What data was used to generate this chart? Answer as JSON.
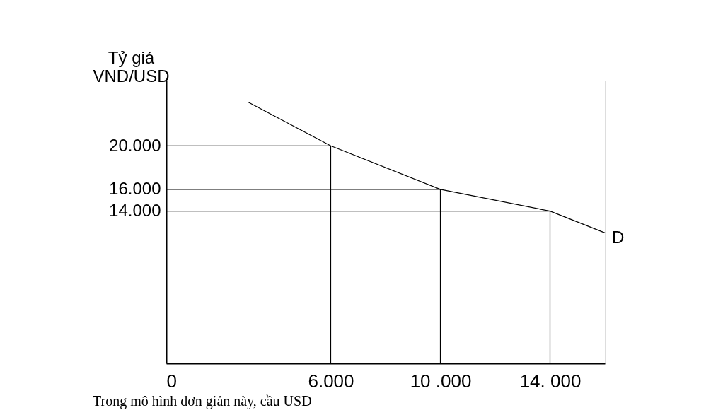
{
  "chart_data": {
    "type": "line",
    "ylabel": "Tỷ giá VND/USD",
    "xlim": [
      0,
      16000
    ],
    "ylim": [
      0,
      26000
    ],
    "xticks": [
      0,
      {
        "value": 6000,
        "label": "6.000"
      },
      {
        "value": 10000,
        "label": "10 .000"
      },
      {
        "value": 14000,
        "label": "14. 000"
      }
    ],
    "yticks": [
      {
        "value": 14000,
        "label": "14.000"
      },
      {
        "value": 16000,
        "label": "16.000"
      },
      {
        "value": 20000,
        "label": "20.000"
      }
    ],
    "series": [
      {
        "name": "D",
        "color": "#000000",
        "x": [
          3000,
          6000,
          10000,
          14000,
          16000
        ],
        "values": [
          24000,
          20000,
          16000,
          14000,
          12000
        ]
      },
      {
        "color": "#000000",
        "x": [
          0,
          6000,
          6000
        ],
        "values": [
          20000,
          20000,
          0
        ]
      },
      {
        "color": "#000000",
        "x": [
          0,
          10000,
          10000
        ],
        "values": [
          16000,
          16000,
          0
        ]
      },
      {
        "color": "#000000",
        "x": [
          0,
          14000,
          14000
        ],
        "values": [
          14000,
          14000,
          0
        ]
      }
    ],
    "grid": false,
    "marker": "none",
    "line_style": "solid",
    "annotations": [
      "Trong mô hình đơn giản này, cầu USD"
    ]
  }
}
